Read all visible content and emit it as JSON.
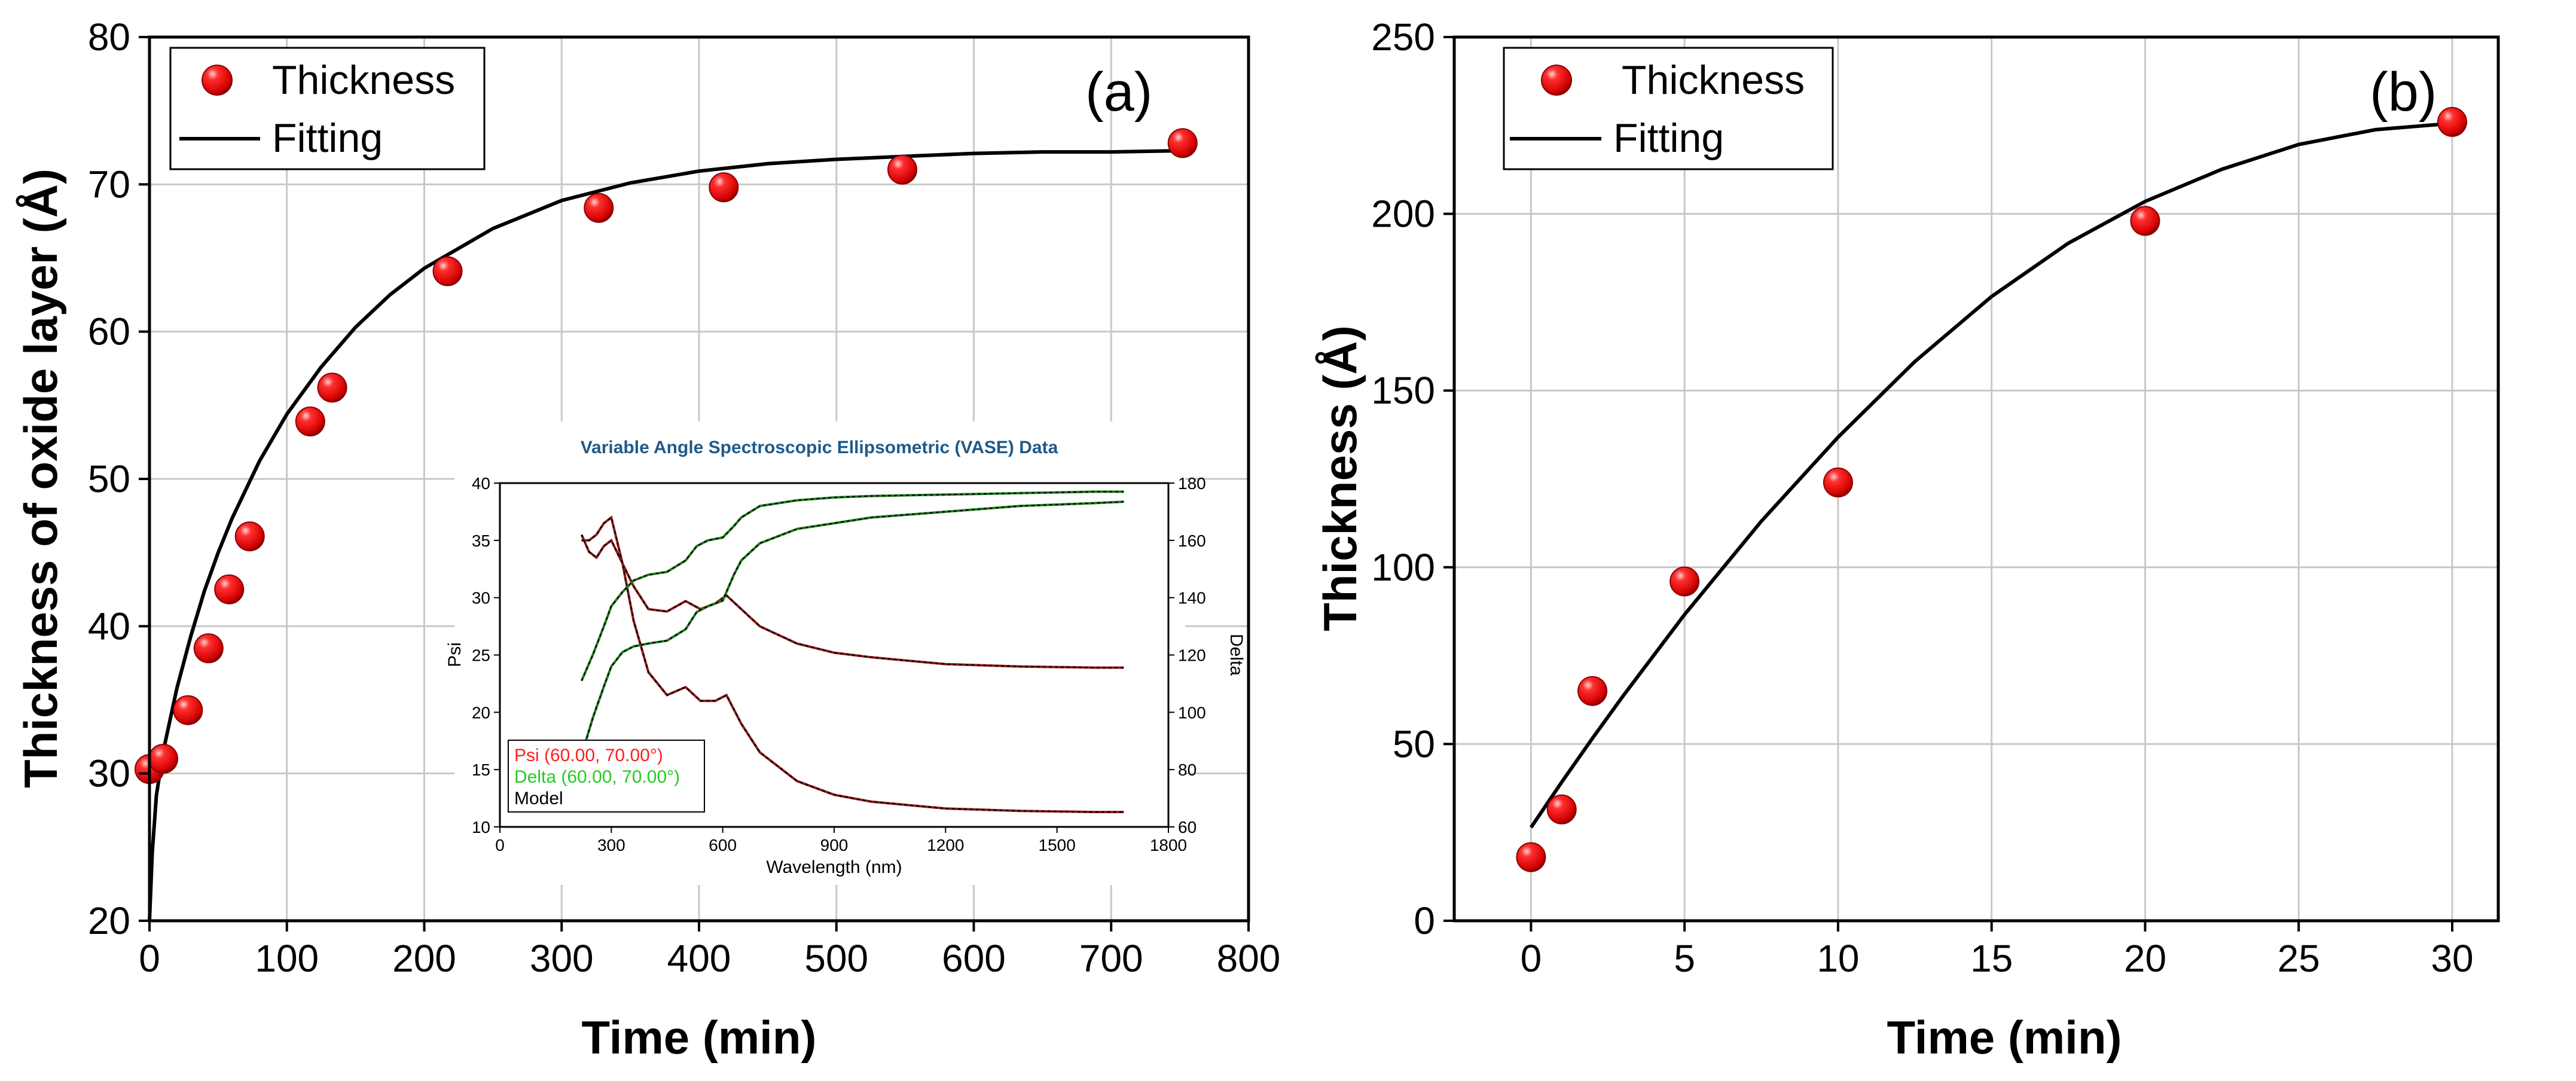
{
  "colors": {
    "marker": "#e8141a",
    "marker_edge": "#8a0000",
    "fit": "#000000",
    "grid": "#c8c8c8",
    "inset_title": "#1f5a8a",
    "psi": "#8b1a1a",
    "delta": "#1e7a1e",
    "psi_label": "#ff2020",
    "delta_label": "#22cc22"
  },
  "chart_data": [
    {
      "id": "a",
      "type": "scatter",
      "panel_label": "(a)",
      "xlabel": "Time (min)",
      "ylabel": "Thickness of oxide layer (Å)",
      "xlim": [
        0,
        800
      ],
      "ylim": [
        20,
        80
      ],
      "xticks": [
        0,
        100,
        200,
        300,
        400,
        500,
        600,
        700,
        800
      ],
      "yticks": [
        20,
        30,
        40,
        50,
        60,
        70,
        80
      ],
      "grid": true,
      "legend_position": "top-left",
      "series": [
        {
          "name": "Thickness",
          "kind": "markers",
          "x": [
            0,
            10,
            28,
            43,
            58,
            73,
            117,
            133,
            217,
            327,
            418,
            548,
            752
          ],
          "y": [
            30.3,
            31.0,
            34.3,
            38.5,
            42.5,
            46.1,
            53.9,
            56.2,
            64.1,
            68.4,
            69.8,
            71.0,
            72.8
          ]
        },
        {
          "name": "Fitting",
          "kind": "line",
          "x": [
            0,
            2,
            5,
            10,
            20,
            30,
            40,
            50,
            60,
            80,
            100,
            125,
            150,
            175,
            200,
            250,
            300,
            350,
            400,
            450,
            500,
            550,
            600,
            650,
            700,
            760
          ],
          "y": [
            20.0,
            24.6,
            28.5,
            31.5,
            35.8,
            39.3,
            42.4,
            45.0,
            47.3,
            51.2,
            54.4,
            57.6,
            60.3,
            62.5,
            64.3,
            67.0,
            68.9,
            70.1,
            70.9,
            71.4,
            71.7,
            71.9,
            72.1,
            72.2,
            72.2,
            72.3
          ]
        }
      ],
      "inset": {
        "type": "line",
        "title": "Variable Angle Spectroscopic Ellipsometric (VASE) Data",
        "xlabel": "Wavelength (nm)",
        "ylabel_left": "Psi",
        "ylabel_right": "Delta",
        "xlim": [
          0,
          1800
        ],
        "ylim_left": [
          10,
          40
        ],
        "ylim_right": [
          60,
          180
        ],
        "xticks": [
          0,
          300,
          600,
          900,
          1200,
          1500,
          1800
        ],
        "yticks_left": [
          10,
          15,
          20,
          25,
          30,
          35,
          40
        ],
        "yticks_right": [
          60,
          80,
          100,
          120,
          140,
          160,
          180
        ],
        "legend": [
          "Psi (60.00, 70.00°)",
          "Delta (60.00, 70.00°)",
          "Model"
        ],
        "series": [
          {
            "name": "Psi 60°",
            "axis": "left",
            "x": [
              220,
              240,
              260,
              280,
              300,
              330,
              360,
              400,
              450,
              500,
              540,
              580,
              610,
              650,
              700,
              800,
              900,
              1000,
              1200,
              1400,
              1600,
              1680
            ],
            "y": [
              35.5,
              34.0,
              33.5,
              34.5,
              35.0,
              33.0,
              31.0,
              29.0,
              28.8,
              29.7,
              29.0,
              29.5,
              30.2,
              29.0,
              27.5,
              26.0,
              25.2,
              24.8,
              24.2,
              24.0,
              23.9,
              23.9
            ]
          },
          {
            "name": "Psi 70°",
            "axis": "left",
            "x": [
              220,
              240,
              260,
              280,
              300,
              330,
              360,
              400,
              450,
              500,
              540,
              580,
              610,
              650,
              700,
              800,
              900,
              1000,
              1200,
              1400,
              1600,
              1680
            ],
            "y": [
              35.0,
              35.0,
              35.5,
              36.5,
              37.0,
              33.0,
              28.0,
              23.5,
              21.5,
              22.2,
              21.0,
              21.0,
              21.5,
              19.0,
              16.5,
              14.0,
              12.8,
              12.2,
              11.6,
              11.4,
              11.3,
              11.3
            ]
          },
          {
            "name": "Delta 60°",
            "axis": "right",
            "x": [
              220,
              250,
              280,
              300,
              330,
              360,
              400,
              450,
              500,
              530,
              560,
              600,
              630,
              650,
              700,
              800,
              900,
              1000,
              1200,
              1400,
              1600,
              1680
            ],
            "y": [
              111,
              120,
              130,
              137,
              142,
              146,
              148,
              149,
              153,
              158,
              160,
              161,
              165,
              168,
              172,
              174,
              175,
              175.5,
              176,
              176.5,
              177,
              177
            ]
          },
          {
            "name": "Delta 70°",
            "axis": "right",
            "x": [
              220,
              250,
              280,
              300,
              330,
              360,
              400,
              450,
              500,
              530,
              560,
              600,
              630,
              650,
              700,
              800,
              900,
              1000,
              1200,
              1400,
              1600,
              1680
            ],
            "y": [
              85,
              98,
              109,
              116,
              121,
              123,
              124,
              125,
              129,
              135,
              137,
              139,
              148,
              153,
              159,
              164,
              166,
              168,
              170,
              172,
              173,
              173.5
            ]
          }
        ]
      }
    },
    {
      "id": "b",
      "type": "scatter",
      "panel_label": "(b)",
      "xlabel": "Time (min)",
      "ylabel": "Thickness (Å)",
      "xlim": [
        -2.5,
        31.5
      ],
      "ylim": [
        0,
        250
      ],
      "xticks": [
        0,
        5,
        10,
        15,
        20,
        25,
        30
      ],
      "yticks": [
        0,
        50,
        100,
        150,
        200,
        250
      ],
      "grid": true,
      "legend_position": "top-left",
      "series": [
        {
          "name": "Thickness",
          "kind": "markers",
          "x": [
            0,
            1,
            2,
            5,
            10,
            20,
            30
          ],
          "y": [
            18,
            31.5,
            65,
            96,
            124,
            198,
            226
          ]
        },
        {
          "name": "Fitting",
          "kind": "line",
          "x": [
            0,
            1,
            2,
            3,
            5,
            7.5,
            10,
            12.5,
            15,
            17.5,
            20,
            22.5,
            25,
            27.5,
            30
          ],
          "y": [
            26.4,
            39.2,
            51.6,
            63.6,
            86.6,
            113.0,
            136.8,
            158.2,
            176.6,
            191.7,
            203.5,
            212.6,
            219.6,
            223.8,
            225.6
          ]
        }
      ]
    }
  ]
}
